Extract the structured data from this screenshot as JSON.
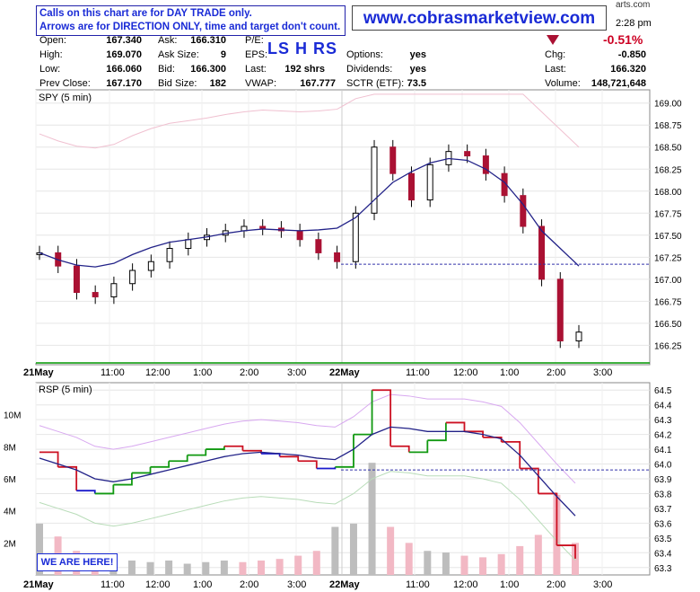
{
  "header": {
    "notice_line1": "Calls on this chart are for DAY TRADE only.",
    "notice_line2": "Arrows are for DIRECTION ONLY, time and target don't count.",
    "website": "www.cobrasmarketview.com",
    "watermark": "arts.com",
    "time": "2:28 pm",
    "change_pct": "-0.51%",
    "codes": "LS H RS",
    "down_color": "#aa1133",
    "fields": {
      "open_label": "Open:",
      "open": "167.340",
      "high_label": "High:",
      "high": "169.070",
      "low_label": "Low:",
      "low": "166.060",
      "prev_label": "Prev Close:",
      "prev": "167.170",
      "ask_label": "Ask:",
      "ask": "166.310",
      "asksize_label": "Ask Size:",
      "asksize": "9",
      "bid_label": "Bid:",
      "bid": "166.300",
      "bidsize_label": "Bid Size:",
      "bidsize": "182",
      "pe_label": "P/E:",
      "eps_label": "EPS:",
      "last_label": "Last:",
      "last": "192 shrs",
      "vwap_label": "VWAP:",
      "vwap": "167.777",
      "options_label": "Options:",
      "options": "yes",
      "dividends_label": "Dividends:",
      "dividends": "yes",
      "sctr_label": "SCTR (ETF):",
      "sctr": "73.5",
      "chg_label": "Chg:",
      "chg": "-0.850",
      "last2_label": "Last:",
      "last2": "166.320",
      "volume_label": "Volume:",
      "volume": "148,721,648"
    }
  },
  "we_are_here": "WE ARE HERE!",
  "chart_data": [
    {
      "type": "candlestick",
      "title": "SPY (5 min)",
      "x_tick_labels": [
        "21May",
        "11:00",
        "12:00",
        "1:00",
        "2:00",
        "3:00",
        "22May",
        "11:00",
        "12:00",
        "1:00",
        "2:00",
        "3:00"
      ],
      "y_ticks": [
        166.25,
        166.5,
        166.75,
        167.0,
        167.25,
        167.5,
        167.75,
        168.0,
        168.25,
        168.5,
        168.75,
        169.0
      ],
      "ylim": [
        166.05,
        169.15
      ],
      "reference_line": 167.17,
      "moving_average": [
        167.3,
        167.22,
        167.16,
        167.14,
        167.18,
        167.28,
        167.36,
        167.42,
        167.45,
        167.48,
        167.52,
        167.55,
        167.57,
        167.56,
        167.55,
        167.56,
        167.58,
        167.7,
        167.9,
        168.1,
        168.22,
        168.32,
        168.37,
        168.35,
        168.25,
        168.1,
        167.85,
        167.55,
        167.35,
        167.15
      ],
      "close": [
        167.3,
        167.15,
        166.85,
        166.8,
        166.95,
        167.1,
        167.2,
        167.35,
        167.45,
        167.5,
        167.55,
        167.6,
        167.58,
        167.55,
        167.45,
        167.3,
        167.2,
        167.75,
        168.5,
        168.2,
        167.9,
        168.3,
        168.45,
        168.4,
        168.2,
        167.95,
        167.6,
        167.0,
        166.3,
        166.4
      ]
    },
    {
      "type": "line+volume",
      "title": "RSP (5 min)",
      "x_tick_labels": [
        "21May",
        "11:00",
        "12:00",
        "1:00",
        "2:00",
        "3:00",
        "22May",
        "11:00",
        "12:00",
        "1:00",
        "2:00",
        "3:00"
      ],
      "y_ticks_right": [
        63.3,
        63.4,
        63.5,
        63.6,
        63.7,
        63.8,
        63.9,
        64.0,
        64.1,
        64.2,
        64.3,
        64.4,
        64.5
      ],
      "y_ticks_left": [
        "2M",
        "4M",
        "6M",
        "8M",
        "10M"
      ],
      "volume_ticks": [
        2,
        4,
        6,
        8,
        10
      ],
      "ylim": [
        63.25,
        64.55
      ],
      "reference_line": 63.96,
      "price": [
        64.08,
        63.98,
        63.82,
        63.8,
        63.86,
        63.94,
        63.98,
        64.02,
        64.06,
        64.1,
        64.12,
        64.09,
        64.07,
        64.05,
        64.02,
        63.97,
        63.98,
        64.2,
        64.5,
        64.12,
        64.08,
        64.16,
        64.28,
        64.22,
        64.18,
        64.15,
        63.97,
        63.8,
        63.45,
        63.36
      ],
      "moving_average": [
        64.04,
        64.0,
        63.96,
        63.9,
        63.88,
        63.9,
        63.93,
        63.96,
        63.99,
        64.02,
        64.05,
        64.07,
        64.08,
        64.07,
        64.06,
        64.04,
        64.03,
        64.1,
        64.2,
        64.25,
        64.24,
        64.22,
        64.22,
        64.22,
        64.2,
        64.17,
        64.06,
        63.92,
        63.78,
        63.65
      ],
      "volume_millions": [
        3.2,
        2.4,
        1.5,
        1.2,
        1.0,
        0.9,
        0.8,
        0.9,
        0.7,
        0.8,
        0.9,
        0.8,
        0.9,
        1.0,
        1.2,
        1.5,
        3.0,
        3.2,
        7.0,
        3.0,
        2.0,
        1.5,
        1.4,
        1.2,
        1.1,
        1.3,
        1.8,
        2.5,
        5.0,
        2.0
      ]
    }
  ]
}
